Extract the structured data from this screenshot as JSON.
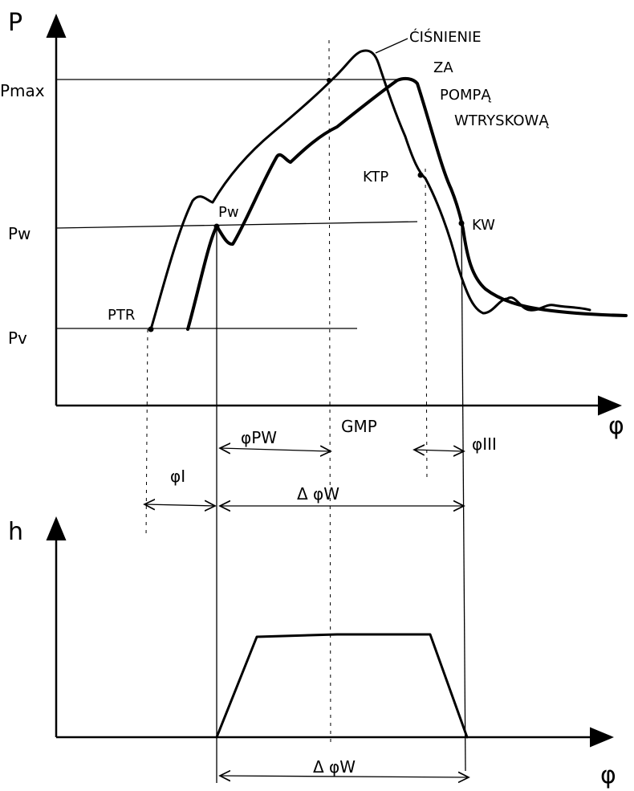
{
  "top_chart": {
    "y_axis_label": "P",
    "x_axis_label": "φ",
    "level_labels": {
      "pmax": "Pmax",
      "pw": "Pw",
      "pv": "Pv"
    },
    "point_labels": {
      "ptr": "PTR",
      "pw": "Pw",
      "ktp": "KTP",
      "kw": "KW"
    },
    "curve_annotation": [
      "ĆIŚNIENIE",
      "ZA",
      "POMPĄ",
      "WTRYSKOWĄ"
    ],
    "gmp": "GMP",
    "interval_labels": {
      "phi_pw": "φPW",
      "phi_i": "φI",
      "phi_iii": "φIII",
      "delta_phi_w": "Δ φW"
    }
  },
  "bottom_chart": {
    "y_axis_label": "h",
    "x_axis_label": "φ",
    "interval_label": "Δ φW"
  }
}
